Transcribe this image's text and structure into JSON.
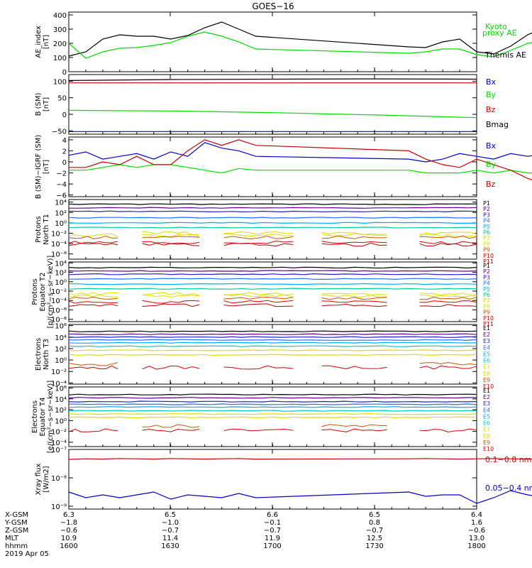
{
  "title": "GOES−16",
  "colors": {
    "axis": "#000000",
    "black": "#000000",
    "green": "#00dd00",
    "blue": "#0000cc",
    "red": "#cc0000",
    "P": [
      "#000000",
      "#660088",
      "#1f1fcc",
      "#1e6fff",
      "#00aaff",
      "#00cc99",
      "#dddd00",
      "#dddd00",
      "#cc5500",
      "#dd0000",
      "#bb0000"
    ],
    "E": [
      "#000000",
      "#660088",
      "#1f1fcc",
      "#1e6fff",
      "#00aaff",
      "#00cccc",
      "#dddd00",
      "#dddd00",
      "#cc5500",
      "#dd0000"
    ]
  },
  "chart_data": [
    {
      "id": "ae",
      "type": "line",
      "ylabel": [
        "AE_index",
        "[nT]"
      ],
      "yticks": [
        "400",
        "300",
        "200",
        "100",
        "0"
      ],
      "ylim": [
        0,
        420
      ],
      "x": [
        1600,
        1605,
        1610,
        1615,
        1620,
        1625,
        1630,
        1635,
        1640,
        1645,
        1650,
        1655,
        1700,
        1705,
        1710,
        1715,
        1720,
        1725,
        1730,
        1735,
        1740,
        1745,
        1750,
        1755,
        1800
      ],
      "series": [
        {
          "name": "Themis AE",
          "color": "black",
          "values": [
            110,
            140,
            230,
            260,
            250,
            250,
            230,
            255,
            310,
            350,
            300,
            250,
            175,
            170,
            210,
            230,
            140,
            125,
            180,
            260,
            310,
            300,
            240,
            230,
            230
          ]
        },
        {
          "name": "Kyoto proxy AE",
          "color": "green",
          "values": [
            200,
            95,
            140,
            165,
            170,
            185,
            205,
            250,
            280,
            250,
            210,
            160,
            130,
            140,
            160,
            160,
            120,
            105,
            150,
            200,
            220,
            210,
            190,
            180,
            200
          ]
        }
      ],
      "legend": [
        {
          "text": "Kyoto",
          "color": "green"
        },
        {
          "text": "proxy AE",
          "color": "green"
        },
        {
          "text": "Themis AE",
          "color": "black"
        }
      ]
    },
    {
      "id": "bsm",
      "type": "line",
      "ylabel": [
        "B (SM)",
        "[nT]"
      ],
      "yticks": [
        "100",
        "50",
        "0",
        "−50"
      ],
      "ylim": [
        -60,
        120
      ],
      "series": [
        {
          "name": "Bx",
          "color": "blue",
          "values": [
            -52,
            -52,
            -52,
            -52,
            -52
          ]
        },
        {
          "name": "By",
          "color": "green",
          "values": [
            12,
            10,
            5,
            -2,
            -10
          ]
        },
        {
          "name": "Bz",
          "color": "red",
          "values": [
            95,
            95,
            95,
            95,
            95
          ]
        },
        {
          "name": "Bmag",
          "color": "black",
          "values": [
            102,
            105,
            106,
            107,
            106
          ]
        }
      ],
      "legend": [
        {
          "text": "Bx",
          "color": "blue"
        },
        {
          "text": "By",
          "color": "green"
        },
        {
          "text": "Bz",
          "color": "red"
        },
        {
          "text": "Bmag",
          "color": "black"
        }
      ]
    },
    {
      "id": "bdiff",
      "type": "line",
      "ylabel": [
        "B (SM)−IGRF (SM)",
        "[nT]"
      ],
      "yticks": [
        "4",
        "2",
        "0",
        "−2",
        "−4",
        "−6"
      ],
      "ylim": [
        -6.3,
        4.5
      ],
      "x": [
        1600,
        1605,
        1610,
        1615,
        1620,
        1625,
        1630,
        1635,
        1640,
        1645,
        1650,
        1655,
        1700,
        1705,
        1710,
        1715,
        1720,
        1725,
        1730,
        1735,
        1740,
        1745,
        1750,
        1755,
        1800
      ],
      "series": [
        {
          "name": "Bx",
          "color": "blue",
          "values": [
            1.2,
            1.8,
            0.5,
            1.0,
            1.5,
            0.5,
            1.8,
            1.0,
            3.5,
            2.5,
            2.0,
            1.0,
            0.5,
            0.0,
            0.5,
            1.5,
            1.0,
            0.5,
            1.5,
            1.0,
            1.5,
            2.0,
            1.0,
            2.0,
            1.5
          ]
        },
        {
          "name": "By",
          "color": "green",
          "values": [
            -1.5,
            -1.5,
            -1.0,
            -0.5,
            -1.0,
            -0.5,
            -0.5,
            -1.0,
            -1.5,
            -2.0,
            -1.2,
            -1.5,
            -1.5,
            -2.0,
            -2.0,
            -2.0,
            -1.5,
            -2.0,
            -1.5,
            -2.0,
            -2.0,
            -1.8,
            -1.5,
            -2.0,
            -2.0
          ]
        },
        {
          "name": "Bz",
          "color": "red",
          "values": [
            -1.0,
            -1.0,
            0.0,
            -0.5,
            1.0,
            -0.5,
            -0.5,
            2.0,
            4.0,
            3.0,
            4.0,
            3.0,
            2.0,
            0.5,
            -0.5,
            -1.0,
            0.5,
            -0.5,
            -1.5,
            -3.0,
            -4.0,
            -3.0,
            -2.5,
            -1.5,
            -1.0
          ]
        }
      ],
      "legend": [
        {
          "text": "Bx",
          "color": "blue"
        },
        {
          "text": "By",
          "color": "green"
        },
        {
          "text": "Bz",
          "color": "red"
        }
      ]
    },
    {
      "id": "pnorth",
      "type": "line",
      "log": true,
      "ylabel": [
        "Protons",
        "North T1"
      ],
      "yticks": [
        "10⁴",
        "10²",
        "10⁰",
        "10⁻²",
        "10⁻⁴",
        "10⁻⁶"
      ],
      "ylim_exp": [
        -7,
        4.5
      ],
      "levels": [
        3.6,
        2.9,
        2.2,
        1.0,
        0.0,
        -0.9,
        -2.0,
        -2.4,
        -2.8,
        -3.8,
        -4.2
      ],
      "legend": [
        {
          "text": "P1",
          "ci": 0
        },
        {
          "text": "P2",
          "ci": 1
        },
        {
          "text": "P3",
          "ci": 2
        },
        {
          "text": "P4",
          "ci": 3
        },
        {
          "text": "P5",
          "ci": 4
        },
        {
          "text": "P6",
          "ci": 5
        },
        {
          "text": "P7",
          "ci": 6
        },
        {
          "text": "P8",
          "ci": 7
        },
        {
          "text": "P9",
          "ci": 8
        },
        {
          "text": "P10",
          "ci": 9
        },
        {
          "text": "P11",
          "ci": 10
        }
      ]
    },
    {
      "id": "peq",
      "type": "line",
      "log": true,
      "ylabel": [
        "Protons",
        "Equator T2",
        "[p/(cm²−s−sr−keV)]"
      ],
      "yticks": [
        "10⁴",
        "10²",
        "10⁰",
        "10⁻²",
        "10⁻⁴",
        "10⁻⁶",
        "10⁻⁸"
      ],
      "ylim_exp": [
        -8.5,
        4.2
      ],
      "levels": [
        3.0,
        2.3,
        1.6,
        0.6,
        -0.5,
        -1.5,
        -2.6,
        -3.0,
        -3.5,
        -4.3,
        -5.0
      ],
      "legend": [
        {
          "text": "P1",
          "ci": 0
        },
        {
          "text": "P2",
          "ci": 1
        },
        {
          "text": "P3",
          "ci": 2
        },
        {
          "text": "P4",
          "ci": 3
        },
        {
          "text": "P5",
          "ci": 4
        },
        {
          "text": "P6",
          "ci": 5
        },
        {
          "text": "P7",
          "ci": 6
        },
        {
          "text": "P8",
          "ci": 7
        },
        {
          "text": "P9",
          "ci": 8
        },
        {
          "text": "P10",
          "ci": 9
        },
        {
          "text": "P11",
          "ci": 10
        }
      ]
    },
    {
      "id": "enorth",
      "type": "line",
      "log": true,
      "ylabel": [
        "Electrons",
        "North T3"
      ],
      "yticks": [
        "10⁶",
        "10⁴",
        "10²",
        "10⁰",
        "10⁻²",
        "10⁻⁴"
      ],
      "ylim_exp": [
        -4.2,
        6.2
      ],
      "levels": [
        5.0,
        4.5,
        4.0,
        3.5,
        3.0,
        2.4,
        1.7,
        0.9,
        -0.7,
        -1.3
      ],
      "legend": [
        {
          "text": "E1",
          "ci": 0
        },
        {
          "text": "E2",
          "ci": 1
        },
        {
          "text": "E3",
          "ci": 2
        },
        {
          "text": "E4",
          "ci": 3
        },
        {
          "text": "E5",
          "ci": 4
        },
        {
          "text": "E6",
          "ci": 5
        },
        {
          "text": "E7",
          "ci": 6
        },
        {
          "text": "E8",
          "ci": 7
        },
        {
          "text": "E9",
          "ci": 8
        },
        {
          "text": "E10",
          "ci": 9
        }
      ]
    },
    {
      "id": "eeq",
      "type": "line",
      "log": true,
      "ylabel": [
        "Electrons",
        "Equator T4",
        "[e/(cm²−s−sr−keV)]"
      ],
      "yticks": [
        "10⁶",
        "10⁴",
        "10²",
        "10⁰",
        "10⁻²",
        "10⁻⁴"
      ],
      "ylim_exp": [
        -4.8,
        6.2
      ],
      "levels": [
        4.8,
        4.2,
        3.5,
        3.0,
        2.5,
        1.8,
        1.2,
        0.6,
        -1.0,
        -1.8
      ],
      "legend": [
        {
          "text": "E1",
          "ci": 0
        },
        {
          "text": "E2",
          "ci": 1
        },
        {
          "text": "E3",
          "ci": 2
        },
        {
          "text": "E4",
          "ci": 3
        },
        {
          "text": "E5",
          "ci": 4
        },
        {
          "text": "E6",
          "ci": 5
        },
        {
          "text": "E7",
          "ci": 6
        },
        {
          "text": "E8",
          "ci": 7
        },
        {
          "text": "E9",
          "ci": 8
        },
        {
          "text": "E10",
          "ci": 9
        }
      ]
    },
    {
      "id": "xray",
      "type": "line",
      "log": true,
      "ylabel": [
        "Xray flux",
        "[W/m2]"
      ],
      "yticks": [
        "10⁻⁷",
        "10⁻⁸",
        "10⁻⁹"
      ],
      "ylim_exp": [
        -9.1,
        -7.0
      ],
      "x": [
        1600,
        1605,
        1610,
        1615,
        1620,
        1625,
        1630,
        1635,
        1640,
        1645,
        1650,
        1655,
        1700,
        1705,
        1710,
        1715,
        1720,
        1725,
        1730,
        1735,
        1740,
        1745,
        1750,
        1755,
        1800
      ],
      "series": [
        {
          "name": "0.1−0.8 nm",
          "color": "red",
          "values": [
            -7.35,
            -7.33,
            -7.34,
            -7.32,
            -7.33,
            -7.34,
            -7.32,
            -7.33,
            -7.34,
            -7.33,
            -7.32,
            -7.34,
            -7.33,
            -7.32,
            -7.33,
            -7.34,
            -7.33,
            -7.32,
            -7.33,
            -7.34,
            -7.33,
            -7.32,
            -7.34,
            -7.33,
            -7.33
          ]
        },
        {
          "name": "0.05−0.4 nm",
          "color": "blue",
          "values": [
            -8.5,
            -8.7,
            -8.6,
            -8.7,
            -8.6,
            -8.5,
            -8.75,
            -8.6,
            -8.65,
            -8.7,
            -8.55,
            -8.7,
            -8.5,
            -8.65,
            -8.6,
            -8.6,
            -8.9,
            -8.7,
            -8.45,
            -8.6,
            -8.7,
            -8.8,
            -8.75,
            -8.8,
            -8.6
          ]
        }
      ],
      "legend": [
        {
          "text": "0.1−0.8 nm",
          "color": "red"
        },
        {
          "text": "0.05−0.4 nm",
          "color": "blue"
        }
      ]
    }
  ],
  "ephemeris": {
    "row_labels": [
      "X-GSM",
      "Y-GSM",
      "Z-GSM",
      "MLT",
      "hhmm",
      "2019 Apr 05"
    ],
    "columns": [
      [
        "6.3",
        "−1.8",
        "−0.6",
        "10.9",
        "1600"
      ],
      [
        "6.5",
        "−1.0",
        "−0.7",
        "11.4",
        "1630"
      ],
      [
        "6.6",
        "−0.1",
        "−0.7",
        "11.9",
        "1700"
      ],
      [
        "6.5",
        "0.8",
        "−0.7",
        "12.5",
        "1730"
      ],
      [
        "6.4",
        "1.6",
        "−0.6",
        "13.0",
        "1800"
      ]
    ]
  }
}
